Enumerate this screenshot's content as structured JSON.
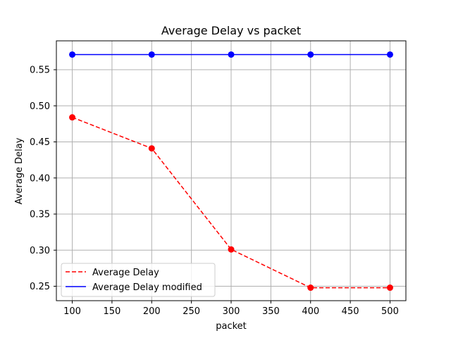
{
  "chart_data": {
    "type": "line",
    "title": "Average Delay vs packet",
    "xlabel": "packet",
    "ylabel": "Average Delay",
    "xlim": [
      80,
      520
    ],
    "ylim": [
      0.23,
      0.59
    ],
    "x_ticks": [
      100,
      150,
      200,
      250,
      300,
      350,
      400,
      450,
      500
    ],
    "y_ticks": [
      0.25,
      0.3,
      0.35,
      0.4,
      0.45,
      0.5,
      0.55
    ],
    "x_tick_labels": [
      "100",
      "150",
      "200",
      "250",
      "300",
      "350",
      "400",
      "450",
      "500"
    ],
    "y_tick_labels": [
      "0.25",
      "0.30",
      "0.35",
      "0.40",
      "0.45",
      "0.50",
      "0.55"
    ],
    "grid": true,
    "legend_position": "lower-left",
    "x": [
      100,
      200,
      300,
      400,
      500
    ],
    "series": [
      {
        "name": "Average Delay",
        "values": [
          0.484,
          0.441,
          0.301,
          0.248,
          0.248
        ],
        "color": "#ff0000",
        "line_style": "dashed",
        "marker": "circle"
      },
      {
        "name": "Average Delay modified",
        "values": [
          0.571,
          0.571,
          0.571,
          0.571,
          0.571
        ],
        "color": "#0000ff",
        "line_style": "solid",
        "marker": "circle"
      }
    ]
  }
}
